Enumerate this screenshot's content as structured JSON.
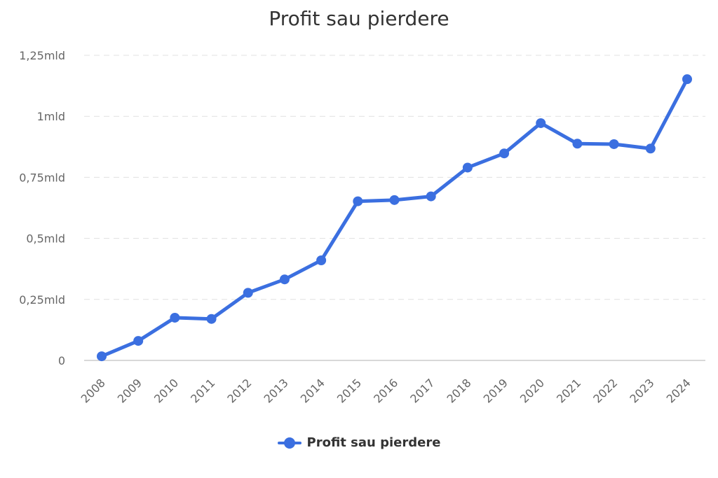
{
  "chart_data": {
    "type": "line",
    "title": "Profit sau pierdere",
    "xlabel": "",
    "ylabel": "",
    "x": [
      "2008",
      "2009",
      "2010",
      "2011",
      "2012",
      "2013",
      "2014",
      "2015",
      "2016",
      "2017",
      "2018",
      "2019",
      "2020",
      "2021",
      "2022",
      "2023",
      "2024"
    ],
    "series": [
      {
        "name": "Profit sau pierdere",
        "color": "#3b6fe0",
        "values": [
          0.017,
          0.08,
          0.175,
          0.17,
          0.277,
          0.332,
          0.41,
          0.652,
          0.657,
          0.672,
          0.79,
          0.848,
          0.972,
          0.888,
          0.886,
          0.868,
          1.152
        ]
      }
    ],
    "ylim": [
      0,
      1.25
    ],
    "yticks": [
      {
        "value": 0,
        "label": "0"
      },
      {
        "value": 0.25,
        "label": "0,25mld"
      },
      {
        "value": 0.5,
        "label": "0,5mld"
      },
      {
        "value": 0.75,
        "label": "0,75mld"
      },
      {
        "value": 1,
        "label": "1mld"
      },
      {
        "value": 1.25,
        "label": "1,25mld"
      }
    ],
    "grid": true,
    "legend_position": "bottom-center"
  }
}
